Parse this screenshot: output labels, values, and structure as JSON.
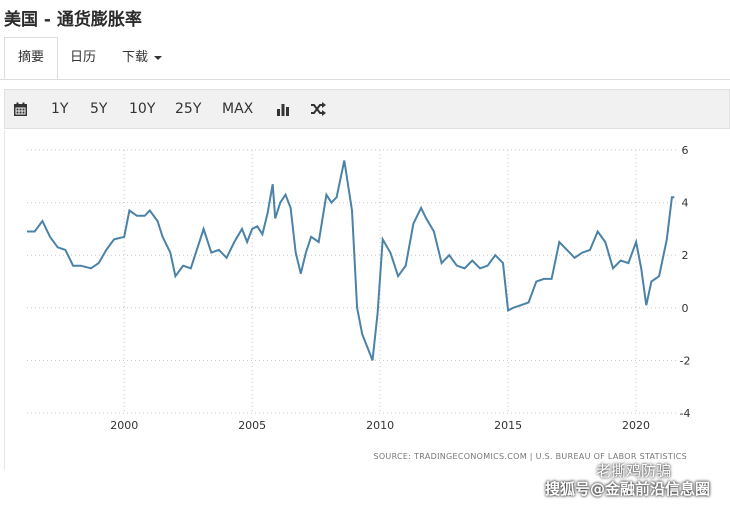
{
  "page_title": "美国 - 通货膨胀率",
  "tabs": {
    "summary": "摘要",
    "calendar": "日历",
    "download": "下载"
  },
  "toolbar": {
    "calendar_icon": "calendar-icon",
    "ranges": [
      "1Y",
      "5Y",
      "10Y",
      "25Y",
      "MAX"
    ],
    "chart_type_icon": "bar-chart-icon",
    "compare_icon": "shuffle-icon"
  },
  "source_text": "SOURCE: TRADINGECONOMICS.COM  |  U.S. BUREAU OF LABOR STATISTICS",
  "watermark": {
    "top": "老撕鸡防骗",
    "bottom": "搜狐号@金融前沿信息圈"
  },
  "colors": {
    "line": "#4a82a8",
    "grid": "#c8c8c8",
    "axis_text": "#333333"
  },
  "chart_data": {
    "type": "line",
    "title": "",
    "xlabel": "",
    "ylabel": "",
    "x_ticks": [
      "2000",
      "2005",
      "2010",
      "2015",
      "2020"
    ],
    "y_ticks": [
      6,
      4,
      2,
      0,
      -2,
      -4
    ],
    "xlim": [
      1996.2,
      2021.6
    ],
    "ylim": [
      -4,
      6
    ],
    "grid": "dotted",
    "series": [
      {
        "x": [
          1996.2,
          1996.5,
          1996.8,
          1997.1,
          1997.4,
          1997.7,
          1998.0,
          1998.3,
          1998.7,
          1999.0,
          1999.3,
          1999.6,
          2000.0,
          2000.2,
          2000.5,
          2000.8,
          2001.0,
          2001.3,
          2001.5,
          2001.8,
          2002.0,
          2002.3,
          2002.6,
          2002.9,
          2003.1,
          2003.4,
          2003.7,
          2004.0,
          2004.3,
          2004.6,
          2004.8,
          2005.0,
          2005.2,
          2005.4,
          2005.6,
          2005.8,
          2005.9,
          2006.1,
          2006.3,
          2006.5,
          2006.7,
          2006.9,
          2007.1,
          2007.3,
          2007.6,
          2007.9,
          2008.1,
          2008.3,
          2008.6,
          2008.9,
          2009.1,
          2009.3,
          2009.5,
          2009.7,
          2009.9,
          2010.1,
          2010.4,
          2010.7,
          2011.0,
          2011.3,
          2011.6,
          2011.8,
          2012.1,
          2012.4,
          2012.7,
          2013.0,
          2013.3,
          2013.6,
          2013.9,
          2014.2,
          2014.5,
          2014.8,
          2015.0,
          2015.2,
          2015.5,
          2015.8,
          2016.1,
          2016.4,
          2016.7,
          2017.0,
          2017.3,
          2017.6,
          2017.9,
          2018.2,
          2018.5,
          2018.8,
          2019.1,
          2019.4,
          2019.7,
          2020.0,
          2020.2,
          2020.4,
          2020.6,
          2020.9,
          2021.2,
          2021.4,
          2021.5
        ],
        "y": [
          2.9,
          2.9,
          3.3,
          2.7,
          2.3,
          2.2,
          1.6,
          1.6,
          1.5,
          1.7,
          2.2,
          2.6,
          2.7,
          3.7,
          3.5,
          3.5,
          3.7,
          3.3,
          2.7,
          2.1,
          1.2,
          1.6,
          1.5,
          2.4,
          3.0,
          2.1,
          2.2,
          1.9,
          2.5,
          3.0,
          2.5,
          3.0,
          3.1,
          2.8,
          3.6,
          4.7,
          3.4,
          4.0,
          4.3,
          3.8,
          2.1,
          1.3,
          2.1,
          2.7,
          2.5,
          4.3,
          4.0,
          4.2,
          5.6,
          3.7,
          0.0,
          -1.0,
          -1.5,
          -2.0,
          -0.2,
          2.6,
          2.1,
          1.2,
          1.6,
          3.2,
          3.8,
          3.4,
          2.9,
          1.7,
          2.0,
          1.6,
          1.5,
          1.8,
          1.5,
          1.6,
          2.0,
          1.7,
          -0.1,
          0.0,
          0.1,
          0.2,
          1.0,
          1.1,
          1.1,
          2.5,
          2.2,
          1.9,
          2.1,
          2.2,
          2.9,
          2.5,
          1.5,
          1.8,
          1.7,
          2.5,
          1.5,
          0.1,
          1.0,
          1.2,
          2.6,
          4.2,
          4.2
        ]
      }
    ]
  }
}
